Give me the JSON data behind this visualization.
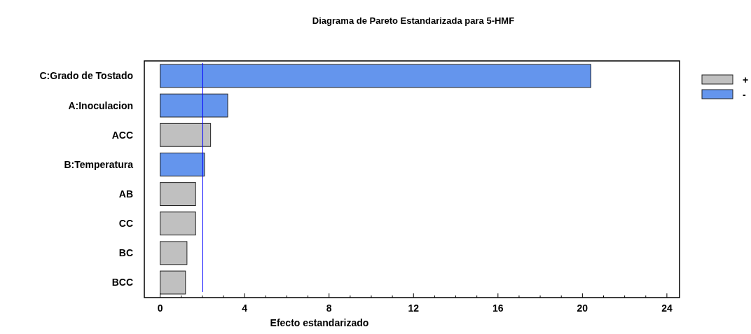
{
  "chart_data": {
    "type": "bar",
    "orientation": "horizontal",
    "stacked": true,
    "title": "Diagrama de Pareto Estandarizada para 5-HMF",
    "xlabel": "Efecto estandarizado",
    "categories": [
      "C:Grado de Tostado",
      "A:Inoculacion",
      "ACC",
      "B:Temperatura",
      "AB",
      "CC",
      "BC",
      "BCC"
    ],
    "series": [
      {
        "name": "+",
        "color": "#c0c0c0",
        "values": [
          null,
          null,
          2.39,
          null,
          1.68,
          1.68,
          1.27,
          1.2
        ]
      },
      {
        "name": "-",
        "color": "#6495ed",
        "values": [
          20.4,
          3.2,
          null,
          2.1,
          null,
          null,
          null,
          null
        ]
      }
    ],
    "xlim": [
      -0.75,
      24.6
    ],
    "xticks": [
      0,
      {
        "value": 1,
        "label": null
      },
      {
        "value": 2,
        "label": null
      },
      {
        "value": 3,
        "label": null
      },
      4,
      {
        "value": 5,
        "label": null
      },
      {
        "value": 6,
        "label": null
      },
      {
        "value": 7,
        "label": null
      },
      8,
      {
        "value": 9,
        "label": null
      },
      {
        "value": 10,
        "label": null
      },
      {
        "value": 11,
        "label": null
      },
      12,
      {
        "value": 13,
        "label": null
      },
      {
        "value": 14,
        "label": null
      },
      {
        "value": 15,
        "label": null
      },
      16,
      {
        "value": 17,
        "label": null
      },
      {
        "value": 18,
        "label": null
      },
      {
        "value": 19,
        "label": null
      },
      20,
      {
        "value": 21,
        "label": null
      },
      {
        "value": 22,
        "label": null
      },
      {
        "value": 23,
        "label": null
      },
      24
    ],
    "ref_lines": [
      {
        "axis": "x",
        "value": 2.02,
        "color": "#0000ff"
      }
    ],
    "legend": "right",
    "grid": false
  }
}
